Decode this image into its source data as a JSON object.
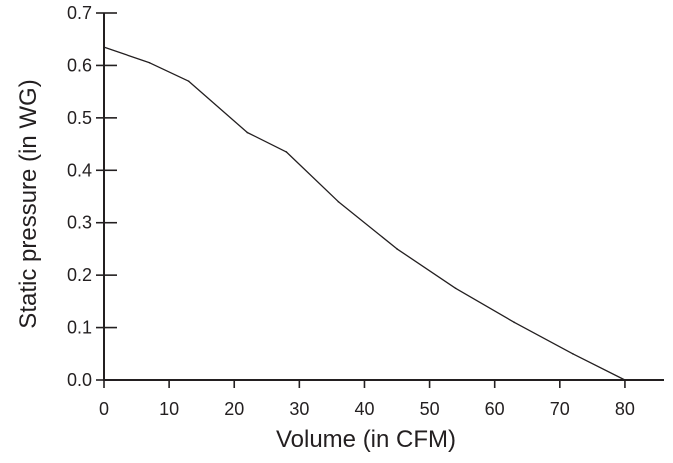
{
  "chart_data": {
    "type": "line",
    "title": "",
    "xlabel": "Volume (in CFM)",
    "ylabel": "Static pressure (in WG)",
    "xlim": [
      0,
      86
    ],
    "ylim": [
      0,
      0.7
    ],
    "grid": false,
    "legend": "none",
    "x_ticks": [
      "0",
      "10",
      "20",
      "30",
      "40",
      "50",
      "60",
      "70",
      "80"
    ],
    "y_ticks": [
      "0.0",
      "0.1",
      "0.2",
      "0.3",
      "0.4",
      "0.5",
      "0.6",
      "0.7"
    ],
    "series": [
      {
        "x": [
          0,
          7,
          13,
          22,
          28,
          36,
          45,
          54,
          63,
          72,
          80
        ],
        "y": [
          0.635,
          0.605,
          0.57,
          0.472,
          0.435,
          0.34,
          0.25,
          0.175,
          0.11,
          0.05,
          0.0
        ]
      }
    ],
    "colors": {
      "axis": "#231f20",
      "line": "#231f20",
      "text": "#231f20",
      "background": "#ffffff"
    }
  }
}
